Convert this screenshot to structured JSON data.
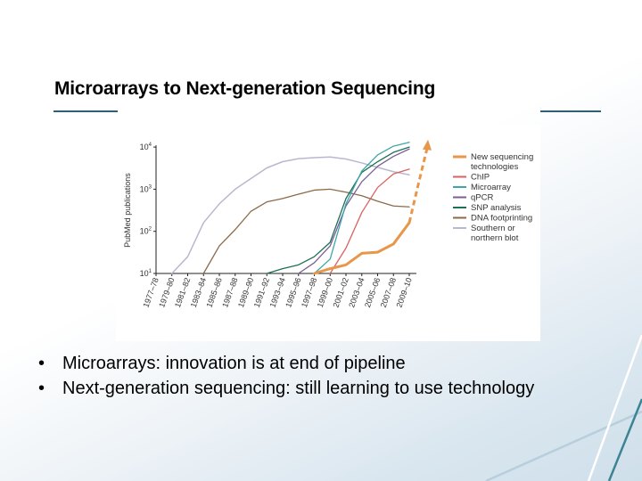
{
  "slide": {
    "title": "Microarrays to Next-generation Sequencing",
    "bullets": [
      {
        "marker": "•",
        "text": "Microarrays: innovation is at end of pipeline"
      },
      {
        "marker": "•",
        "text": "Next-generation sequencing: still learning to use technology"
      }
    ],
    "colors": {
      "title_underline": "#2e5f72",
      "deco_teal": "#3c8393",
      "deco_light": "#b7cfdc"
    }
  },
  "chart_data": {
    "type": "line",
    "title": "",
    "xlabel": "",
    "ylabel": "PubMed publications",
    "yscale": "log",
    "ylim": [
      10,
      10000
    ],
    "yticks": [
      {
        "value": 10,
        "label": "10",
        "exp": "1"
      },
      {
        "value": 100,
        "label": "10",
        "exp": "2"
      },
      {
        "value": 1000,
        "label": "10",
        "exp": "3"
      },
      {
        "value": 10000,
        "label": "10",
        "exp": "4"
      }
    ],
    "grid": false,
    "legend_position": "right",
    "categories": [
      "1977–78",
      "1979–80",
      "1981–82",
      "1983–84",
      "1985–86",
      "1987–88",
      "1989–90",
      "1991–92",
      "1993–94",
      "1995–96",
      "1997–98",
      "1999–00",
      "2001–02",
      "2003–04",
      "2005–06",
      "2007–08",
      "2009–10"
    ],
    "series": [
      {
        "name": "New sequencing technologies",
        "color": "#e8974a",
        "width": 3,
        "values": [
          null,
          null,
          null,
          null,
          null,
          null,
          null,
          null,
          null,
          null,
          10,
          13,
          16,
          30,
          32,
          50,
          160
        ],
        "projection": {
          "style": "dashed-arrow",
          "to_value": 15000
        }
      },
      {
        "name": "ChIP",
        "color": "#d9625f",
        "width": 1.3,
        "values": [
          null,
          null,
          null,
          null,
          null,
          null,
          null,
          null,
          null,
          null,
          null,
          10,
          40,
          280,
          1100,
          2300,
          3000
        ]
      },
      {
        "name": "Microarray",
        "color": "#3fa6a6",
        "width": 1.3,
        "values": [
          null,
          null,
          null,
          null,
          null,
          null,
          null,
          null,
          null,
          null,
          10,
          22,
          450,
          2700,
          6500,
          10500,
          13000
        ]
      },
      {
        "name": "qPCR",
        "color": "#7c5e96",
        "width": 1.3,
        "values": [
          null,
          null,
          null,
          null,
          null,
          null,
          null,
          null,
          null,
          10,
          18,
          45,
          400,
          1500,
          3500,
          6000,
          9000
        ]
      },
      {
        "name": "SNP analysis",
        "color": "#1f6e57",
        "width": 1.3,
        "values": [
          null,
          null,
          null,
          null,
          null,
          null,
          null,
          10,
          13,
          16,
          25,
          55,
          600,
          2500,
          4500,
          7500,
          10000
        ]
      },
      {
        "name": "DNA footprinting",
        "color": "#8c6a48",
        "width": 1.3,
        "values": [
          null,
          null,
          null,
          10,
          45,
          110,
          300,
          500,
          600,
          760,
          950,
          1000,
          850,
          700,
          520,
          400,
          380
        ]
      },
      {
        "name": "Southern or northern blot",
        "color": "#b8b8d0",
        "width": 1.5,
        "values": [
          null,
          10,
          25,
          160,
          450,
          1000,
          1800,
          3200,
          4500,
          5300,
          5600,
          5800,
          5200,
          4200,
          3300,
          2600,
          2200
        ]
      }
    ],
    "legend": [
      {
        "lines": [
          "New sequencing",
          "technologies"
        ],
        "color": "#e8974a"
      },
      {
        "lines": [
          "ChIP"
        ],
        "color": "#d9625f"
      },
      {
        "lines": [
          "Microarray"
        ],
        "color": "#3fa6a6"
      },
      {
        "lines": [
          "qPCR"
        ],
        "color": "#7c5e96"
      },
      {
        "lines": [
          "SNP analysis"
        ],
        "color": "#1f6e57"
      },
      {
        "lines": [
          "DNA footprinting"
        ],
        "color": "#8c6a48"
      },
      {
        "lines": [
          "Southern or",
          "northern blot"
        ],
        "color": "#b8b8d0"
      }
    ]
  }
}
